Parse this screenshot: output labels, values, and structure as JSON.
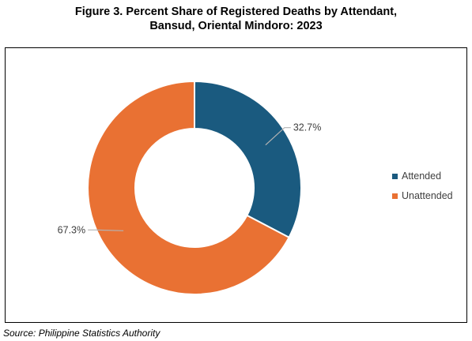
{
  "title": {
    "line1": "Figure 3. Percent Share of Registered Deaths by Attendant,",
    "line2": "Bansud, Oriental Mindoro: 2023"
  },
  "source": "Source: Philippine Statistics Authority",
  "chart_data": {
    "type": "pie",
    "subtype": "donut",
    "title": "Figure 3. Percent Share of Registered Deaths by Attendant, Bansud, Oriental Mindoro: 2023",
    "categories": [
      "Attended",
      "Unattended"
    ],
    "values": [
      32.7,
      67.3
    ],
    "data_labels": [
      "32.7%",
      "67.3%"
    ],
    "colors": [
      "#1a5a7f",
      "#e97133"
    ],
    "legend": {
      "placement": "right",
      "entries": [
        "Attended",
        "Unattended"
      ]
    },
    "start_angle_deg": 0,
    "direction": "clockwise"
  }
}
